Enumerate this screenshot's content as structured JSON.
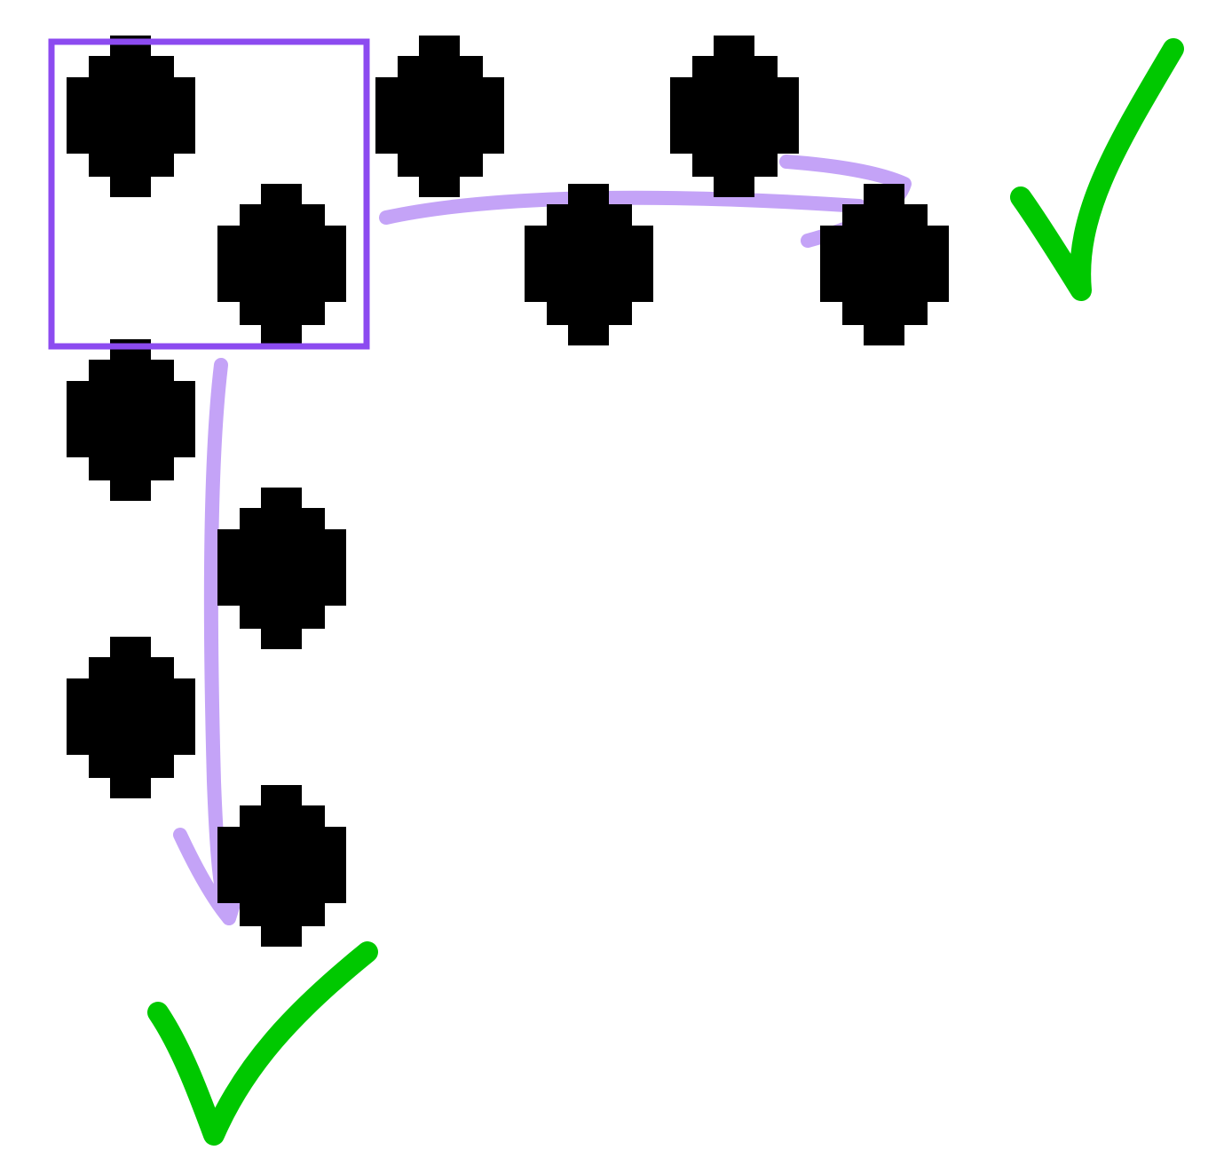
{
  "colors": {
    "background": "#ffffff",
    "dot": "#000000",
    "selection": "#8c4bf0",
    "arrow": "#c4a3f7",
    "check": "#00c800"
  },
  "icons": {
    "check": "check-mark-icon",
    "arrow": "curved-arrow-icon"
  }
}
